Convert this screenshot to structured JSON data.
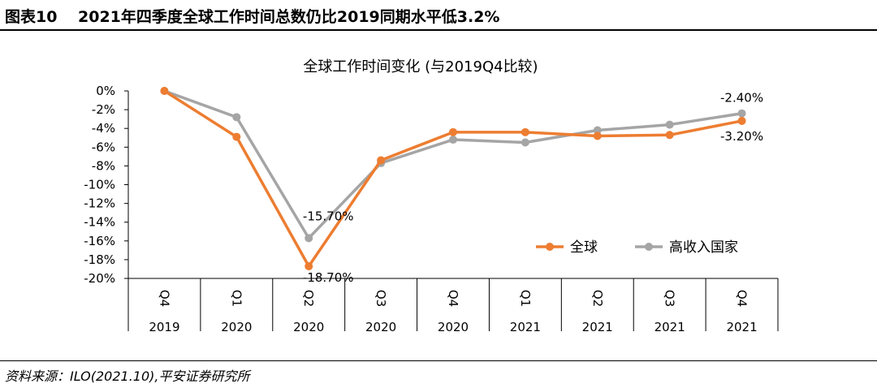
{
  "header": {
    "figure_label": "图表10",
    "figure_title": "2021年四季度全球工作时间总数仍比2019同期水平低3.2%"
  },
  "footer": {
    "source": "资料来源：ILO(2021.10),平安证券研究所"
  },
  "chart_data": {
    "type": "line",
    "title": "全球工作时间变化 (与2019Q4比较)",
    "xlabel": "",
    "ylabel": "",
    "ylim": [
      -20,
      0
    ],
    "yticks": [
      0,
      -2,
      -4,
      -6,
      -8,
      -10,
      -12,
      -14,
      -16,
      -18,
      -20
    ],
    "ytick_labels": [
      "0%",
      "-2%",
      "-4%",
      "-6%",
      "-8%",
      "-10%",
      "-12%",
      "-14%",
      "-16%",
      "-18%",
      "-20%"
    ],
    "categories": [
      {
        "quarter": "Q4",
        "year": "2019"
      },
      {
        "quarter": "Q1",
        "year": "2020"
      },
      {
        "quarter": "Q2",
        "year": "2020"
      },
      {
        "quarter": "Q3",
        "year": "2020"
      },
      {
        "quarter": "Q4",
        "year": "2020"
      },
      {
        "quarter": "Q1",
        "year": "2021"
      },
      {
        "quarter": "Q2",
        "year": "2021"
      },
      {
        "quarter": "Q3",
        "year": "2021"
      },
      {
        "quarter": "Q4",
        "year": "2021"
      }
    ],
    "series": [
      {
        "name": "全球",
        "color": "#ED7D31",
        "values": [
          0,
          -4.9,
          -18.7,
          -7.4,
          -4.4,
          -4.4,
          -4.8,
          -4.7,
          -3.2
        ]
      },
      {
        "name": "高收入国家",
        "color": "#A5A5A5",
        "values": [
          0,
          -2.8,
          -15.7,
          -7.7,
          -5.2,
          -5.5,
          -4.2,
          -3.6,
          -2.4
        ]
      }
    ],
    "data_labels": [
      {
        "series": 1,
        "index": 2,
        "text": "-15.70%"
      },
      {
        "series": 0,
        "index": 2,
        "text": "-18.70%"
      },
      {
        "series": 1,
        "index": 8,
        "text": "-2.40%"
      },
      {
        "series": 0,
        "index": 8,
        "text": "-3.20%"
      }
    ],
    "legend_position": "right",
    "grid": false
  }
}
